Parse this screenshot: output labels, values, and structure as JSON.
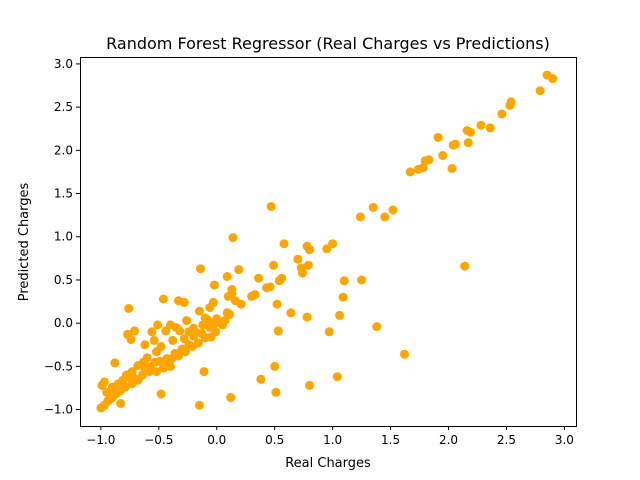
{
  "chart_data": {
    "type": "scatter",
    "title": "Random Forest Regressor (Real Charges vs Predictions)",
    "xlabel": "Real Charges",
    "ylabel": "Predicted Charges",
    "xlim": [
      -1.18,
      3.1
    ],
    "ylim": [
      -1.19,
      3.08
    ],
    "xticks": [
      -1.0,
      -0.5,
      0.0,
      0.5,
      1.0,
      1.5,
      2.0,
      2.5,
      3.0
    ],
    "xtick_labels": [
      "−1.0",
      "−0.5",
      "0.0",
      "0.5",
      "1.0",
      "1.5",
      "2.0",
      "2.5",
      "3.0"
    ],
    "yticks": [
      -1.0,
      -0.5,
      0.0,
      0.5,
      1.0,
      1.5,
      2.0,
      2.5,
      3.0
    ],
    "ytick_labels": [
      "−1.0",
      "−0.5",
      "0.0",
      "0.5",
      "1.0",
      "1.5",
      "2.0",
      "2.5",
      "3.0"
    ],
    "grid": false,
    "marker_color": "#ffa500",
    "points": [
      [
        2.85,
        2.87
      ],
      [
        2.9,
        2.83
      ],
      [
        2.79,
        2.69
      ],
      [
        2.54,
        2.56
      ],
      [
        2.53,
        2.52
      ],
      [
        2.46,
        2.42
      ],
      [
        2.28,
        2.29
      ],
      [
        2.36,
        2.26
      ],
      [
        2.16,
        2.23
      ],
      [
        2.19,
        2.21
      ],
      [
        2.17,
        2.09
      ],
      [
        2.06,
        2.07
      ],
      [
        2.04,
        2.06
      ],
      [
        1.91,
        2.15
      ],
      [
        1.95,
        1.94
      ],
      [
        1.8,
        1.88
      ],
      [
        1.83,
        1.89
      ],
      [
        1.78,
        1.8
      ],
      [
        1.74,
        1.78
      ],
      [
        1.67,
        1.75
      ],
      [
        2.03,
        1.79
      ],
      [
        1.35,
        1.34
      ],
      [
        1.52,
        1.31
      ],
      [
        1.24,
        1.23
      ],
      [
        1.45,
        1.23
      ],
      [
        2.14,
        0.66
      ],
      [
        0.47,
        1.35
      ],
      [
        0.14,
        0.99
      ],
      [
        0.58,
        0.92
      ],
      [
        1.0,
        0.92
      ],
      [
        0.78,
        0.89
      ],
      [
        0.8,
        0.85
      ],
      [
        0.95,
        0.86
      ],
      [
        0.7,
        0.74
      ],
      [
        0.73,
        0.64
      ],
      [
        0.74,
        0.58
      ],
      [
        0.79,
        0.67
      ],
      [
        0.49,
        0.67
      ],
      [
        -0.14,
        0.63
      ],
      [
        0.19,
        0.62
      ],
      [
        0.56,
        0.52
      ],
      [
        0.54,
        0.49
      ],
      [
        0.43,
        0.41
      ],
      [
        0.46,
        0.42
      ],
      [
        0.36,
        0.52
      ],
      [
        0.09,
        0.54
      ],
      [
        1.1,
        0.49
      ],
      [
        1.25,
        0.5
      ],
      [
        0.13,
        0.39
      ],
      [
        -0.02,
        0.44
      ],
      [
        0.3,
        0.31
      ],
      [
        0.33,
        0.33
      ],
      [
        0.13,
        0.34
      ],
      [
        0.1,
        0.31
      ],
      [
        0.16,
        0.26
      ],
      [
        0.21,
        0.22
      ],
      [
        -0.03,
        0.24
      ],
      [
        1.09,
        0.3
      ],
      [
        0.64,
        0.12
      ],
      [
        0.52,
        0.22
      ],
      [
        0.78,
        0.07
      ],
      [
        1.06,
        0.09
      ],
      [
        -0.46,
        0.28
      ],
      [
        -0.33,
        0.26
      ],
      [
        -0.28,
        0.24
      ],
      [
        -0.15,
        0.14
      ],
      [
        -0.06,
        0.18
      ],
      [
        -0.1,
        0.06
      ],
      [
        0.09,
        0.12
      ],
      [
        0.11,
        0.1
      ],
      [
        -0.76,
        0.17
      ],
      [
        -0.51,
        -0.02
      ],
      [
        -0.4,
        -0.02
      ],
      [
        -0.71,
        -0.09
      ],
      [
        -0.77,
        -0.13
      ],
      [
        -0.56,
        -0.1
      ],
      [
        -0.44,
        -0.09
      ],
      [
        -0.74,
        -0.19
      ],
      [
        -0.54,
        -0.2
      ],
      [
        -0.62,
        -0.25
      ],
      [
        -0.52,
        -0.33
      ],
      [
        -0.6,
        -0.4
      ],
      [
        -0.35,
        -0.05
      ],
      [
        -0.32,
        -0.09
      ],
      [
        -0.24,
        -0.1
      ],
      [
        -0.18,
        -0.11
      ],
      [
        -0.28,
        -0.18
      ],
      [
        -0.2,
        -0.15
      ],
      [
        -0.13,
        -0.12
      ],
      [
        -0.06,
        -0.05
      ],
      [
        -0.02,
        0.0
      ],
      [
        0.02,
        0.01
      ],
      [
        -0.05,
        -0.16
      ],
      [
        -0.01,
        -0.1
      ],
      [
        0.05,
        -0.02
      ],
      [
        0.07,
        0.03
      ],
      [
        -0.24,
        -0.25
      ],
      [
        -0.3,
        -0.3
      ],
      [
        -0.36,
        -0.35
      ],
      [
        -0.43,
        -0.41
      ],
      [
        -0.49,
        -0.44
      ],
      [
        -0.4,
        -0.5
      ],
      [
        -0.46,
        -0.52
      ],
      [
        -0.52,
        -0.56
      ],
      [
        -0.58,
        -0.56
      ],
      [
        -0.64,
        -0.6
      ],
      [
        -0.68,
        -0.66
      ],
      [
        -0.73,
        -0.7
      ],
      [
        -0.79,
        -0.74
      ],
      [
        -0.83,
        -0.78
      ],
      [
        -0.87,
        -0.82
      ],
      [
        -0.9,
        -0.86
      ],
      [
        -0.94,
        -0.9
      ],
      [
        -0.97,
        -0.95
      ],
      [
        -1.0,
        -0.98
      ],
      [
        -0.99,
        -0.72
      ],
      [
        -0.97,
        -0.68
      ],
      [
        -0.9,
        -0.74
      ],
      [
        -0.85,
        -0.7
      ],
      [
        -0.81,
        -0.66
      ],
      [
        -0.78,
        -0.6
      ],
      [
        -0.73,
        -0.56
      ],
      [
        -0.68,
        -0.49
      ],
      [
        -0.63,
        -0.45
      ],
      [
        -0.88,
        -0.46
      ],
      [
        -0.71,
        -0.64
      ],
      [
        -0.76,
        -0.62
      ],
      [
        -0.62,
        -0.54
      ],
      [
        -0.57,
        -0.5
      ],
      [
        -0.53,
        -0.45
      ],
      [
        -0.33,
        -0.38
      ],
      [
        -0.27,
        -0.33
      ],
      [
        -0.21,
        -0.27
      ],
      [
        -0.16,
        -0.23
      ],
      [
        -0.1,
        -0.17
      ],
      [
        -0.39,
        -0.41
      ],
      [
        -0.45,
        -0.46
      ],
      [
        -0.83,
        -0.93
      ],
      [
        -0.92,
        -0.88
      ],
      [
        -0.95,
        -0.8
      ],
      [
        -0.48,
        -0.82
      ],
      [
        -0.11,
        -0.56
      ],
      [
        -0.15,
        -0.95
      ],
      [
        0.12,
        -0.86
      ],
      [
        0.38,
        -0.65
      ],
      [
        0.5,
        -0.5
      ],
      [
        0.51,
        -0.8
      ],
      [
        0.53,
        -0.09
      ],
      [
        0.97,
        -0.1
      ],
      [
        0.8,
        -0.72
      ],
      [
        1.04,
        -0.62
      ],
      [
        1.38,
        -0.04
      ],
      [
        1.62,
        -0.36
      ],
      [
        -0.2,
        -0.06
      ],
      [
        -0.12,
        -0.02
      ],
      [
        -0.08,
        0.04
      ],
      [
        0.0,
        0.05
      ],
      [
        -0.26,
        0.03
      ],
      [
        -0.38,
        -0.2
      ],
      [
        -0.48,
        -0.27
      ]
    ]
  }
}
